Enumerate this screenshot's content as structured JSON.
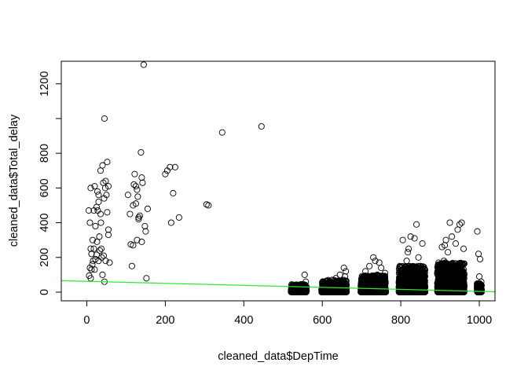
{
  "chart_data": {
    "type": "scatter",
    "title": "",
    "xlabel": "cleaned_data$DepTime",
    "ylabel": "cleaned_data$Total_delay",
    "xlim": [
      -65,
      1040
    ],
    "ylim": [
      -50,
      1330
    ],
    "x_ticks": [
      0,
      200,
      400,
      600,
      800,
      1000
    ],
    "y_ticks": [
      0,
      200,
      400,
      600,
      800,
      1200
    ],
    "grid": false,
    "legend": "none",
    "point_style": "open-circle",
    "point_color": "#000000",
    "regression_line": {
      "color": "#32e632",
      "x": [
        -65,
        1040
      ],
      "y": [
        66,
        2
      ]
    },
    "points": [
      [
        5,
        470
      ],
      [
        8,
        400
      ],
      [
        10,
        600
      ],
      [
        12,
        130
      ],
      [
        6,
        95
      ],
      [
        10,
        250
      ],
      [
        15,
        300
      ],
      [
        20,
        610
      ],
      [
        22,
        380
      ],
      [
        25,
        490
      ],
      [
        28,
        470
      ],
      [
        30,
        560
      ],
      [
        30,
        180
      ],
      [
        32,
        320
      ],
      [
        35,
        450
      ],
      [
        38,
        200
      ],
      [
        40,
        730
      ],
      [
        42,
        630
      ],
      [
        45,
        1000
      ],
      [
        47,
        600
      ],
      [
        50,
        560
      ],
      [
        52,
        750
      ],
      [
        55,
        610
      ],
      [
        55,
        360
      ],
      [
        58,
        170
      ],
      [
        48,
        640
      ],
      [
        44,
        540
      ],
      [
        36,
        400
      ],
      [
        18,
        250
      ],
      [
        14,
        160
      ],
      [
        12,
        220
      ],
      [
        20,
        130
      ],
      [
        25,
        215
      ],
      [
        33,
        240
      ],
      [
        40,
        100
      ],
      [
        45,
        60
      ],
      [
        48,
        180
      ],
      [
        52,
        460
      ],
      [
        55,
        330
      ],
      [
        8,
        140
      ],
      [
        16,
        180
      ],
      [
        22,
        190
      ],
      [
        27,
        580
      ],
      [
        35,
        700
      ],
      [
        30,
        520
      ],
      [
        18,
        470
      ],
      [
        26,
        290
      ],
      [
        37,
        250
      ],
      [
        43,
        210
      ],
      [
        10,
        80
      ],
      [
        105,
        560
      ],
      [
        110,
        450
      ],
      [
        112,
        275
      ],
      [
        115,
        150
      ],
      [
        118,
        500
      ],
      [
        120,
        620
      ],
      [
        122,
        680
      ],
      [
        125,
        610
      ],
      [
        128,
        590
      ],
      [
        130,
        550
      ],
      [
        132,
        420
      ],
      [
        135,
        440
      ],
      [
        138,
        805
      ],
      [
        140,
        660
      ],
      [
        142,
        630
      ],
      [
        145,
        1310
      ],
      [
        148,
        380
      ],
      [
        150,
        350
      ],
      [
        152,
        80
      ],
      [
        155,
        480
      ],
      [
        128,
        300
      ],
      [
        118,
        270
      ],
      [
        125,
        510
      ],
      [
        132,
        430
      ],
      [
        140,
        290
      ],
      [
        200,
        680
      ],
      [
        205,
        700
      ],
      [
        212,
        720
      ],
      [
        215,
        400
      ],
      [
        220,
        570
      ],
      [
        225,
        720
      ],
      [
        235,
        430
      ],
      [
        305,
        505
      ],
      [
        310,
        500
      ],
      [
        345,
        920
      ],
      [
        445,
        955
      ],
      [
        525,
        20
      ],
      [
        530,
        35
      ],
      [
        535,
        10
      ],
      [
        540,
        25
      ],
      [
        545,
        15
      ],
      [
        550,
        45
      ],
      [
        555,
        100
      ],
      [
        558,
        60
      ],
      [
        560,
        30
      ],
      [
        548,
        5
      ],
      [
        532,
        8
      ],
      [
        542,
        38
      ],
      [
        556,
        12
      ],
      [
        605,
        25
      ],
      [
        610,
        40
      ],
      [
        615,
        55
      ],
      [
        620,
        30
      ],
      [
        625,
        70
      ],
      [
        630,
        20
      ],
      [
        635,
        80
      ],
      [
        640,
        45
      ],
      [
        645,
        100
      ],
      [
        650,
        60
      ],
      [
        655,
        140
      ],
      [
        658,
        90
      ],
      [
        660,
        120
      ],
      [
        612,
        12
      ],
      [
        622,
        8
      ],
      [
        638,
        15
      ],
      [
        648,
        35
      ],
      [
        654,
        25
      ],
      [
        705,
        30
      ],
      [
        710,
        120
      ],
      [
        715,
        60
      ],
      [
        720,
        150
      ],
      [
        725,
        90
      ],
      [
        730,
        200
      ],
      [
        735,
        180
      ],
      [
        740,
        100
      ],
      [
        745,
        170
      ],
      [
        750,
        140
      ],
      [
        755,
        60
      ],
      [
        760,
        110
      ],
      [
        712,
        15
      ],
      [
        724,
        20
      ],
      [
        736,
        40
      ],
      [
        748,
        25
      ],
      [
        758,
        10
      ],
      [
        742,
        55
      ],
      [
        800,
        80
      ],
      [
        805,
        300
      ],
      [
        810,
        50
      ],
      [
        815,
        180
      ],
      [
        820,
        250
      ],
      [
        825,
        320
      ],
      [
        830,
        120
      ],
      [
        835,
        310
      ],
      [
        840,
        390
      ],
      [
        845,
        200
      ],
      [
        850,
        150
      ],
      [
        855,
        280
      ],
      [
        860,
        100
      ],
      [
        812,
        20
      ],
      [
        822,
        15
      ],
      [
        832,
        40
      ],
      [
        842,
        30
      ],
      [
        852,
        60
      ],
      [
        818,
        230
      ],
      [
        848,
        90
      ],
      [
        900,
        100
      ],
      [
        905,
        260
      ],
      [
        910,
        180
      ],
      [
        915,
        300
      ],
      [
        920,
        230
      ],
      [
        925,
        400
      ],
      [
        930,
        320
      ],
      [
        935,
        150
      ],
      [
        940,
        280
      ],
      [
        945,
        360
      ],
      [
        950,
        390
      ],
      [
        955,
        400
      ],
      [
        960,
        250
      ],
      [
        908,
        30
      ],
      [
        918,
        20
      ],
      [
        928,
        60
      ],
      [
        938,
        45
      ],
      [
        948,
        15
      ],
      [
        958,
        80
      ],
      [
        912,
        270
      ],
      [
        995,
        350
      ],
      [
        998,
        220
      ],
      [
        1000,
        90
      ],
      [
        1002,
        190
      ],
      [
        1005,
        60
      ],
      [
        997,
        30
      ],
      [
        1003,
        45
      ],
      [
        1001,
        10
      ]
    ],
    "clusters": [
      {
        "x": [
          520,
          560
        ],
        "y": [
          0,
          45
        ],
        "density": 260
      },
      {
        "x": [
          598,
          662
        ],
        "y": [
          0,
          70
        ],
        "density": 520
      },
      {
        "x": [
          698,
          762
        ],
        "y": [
          0,
          95
        ],
        "density": 820
      },
      {
        "x": [
          795,
          862
        ],
        "y": [
          0,
          150
        ],
        "density": 1100
      },
      {
        "x": [
          893,
          962
        ],
        "y": [
          0,
          170
        ],
        "density": 1250
      },
      {
        "x": [
          994,
          1006
        ],
        "y": [
          0,
          50
        ],
        "density": 120
      }
    ]
  }
}
